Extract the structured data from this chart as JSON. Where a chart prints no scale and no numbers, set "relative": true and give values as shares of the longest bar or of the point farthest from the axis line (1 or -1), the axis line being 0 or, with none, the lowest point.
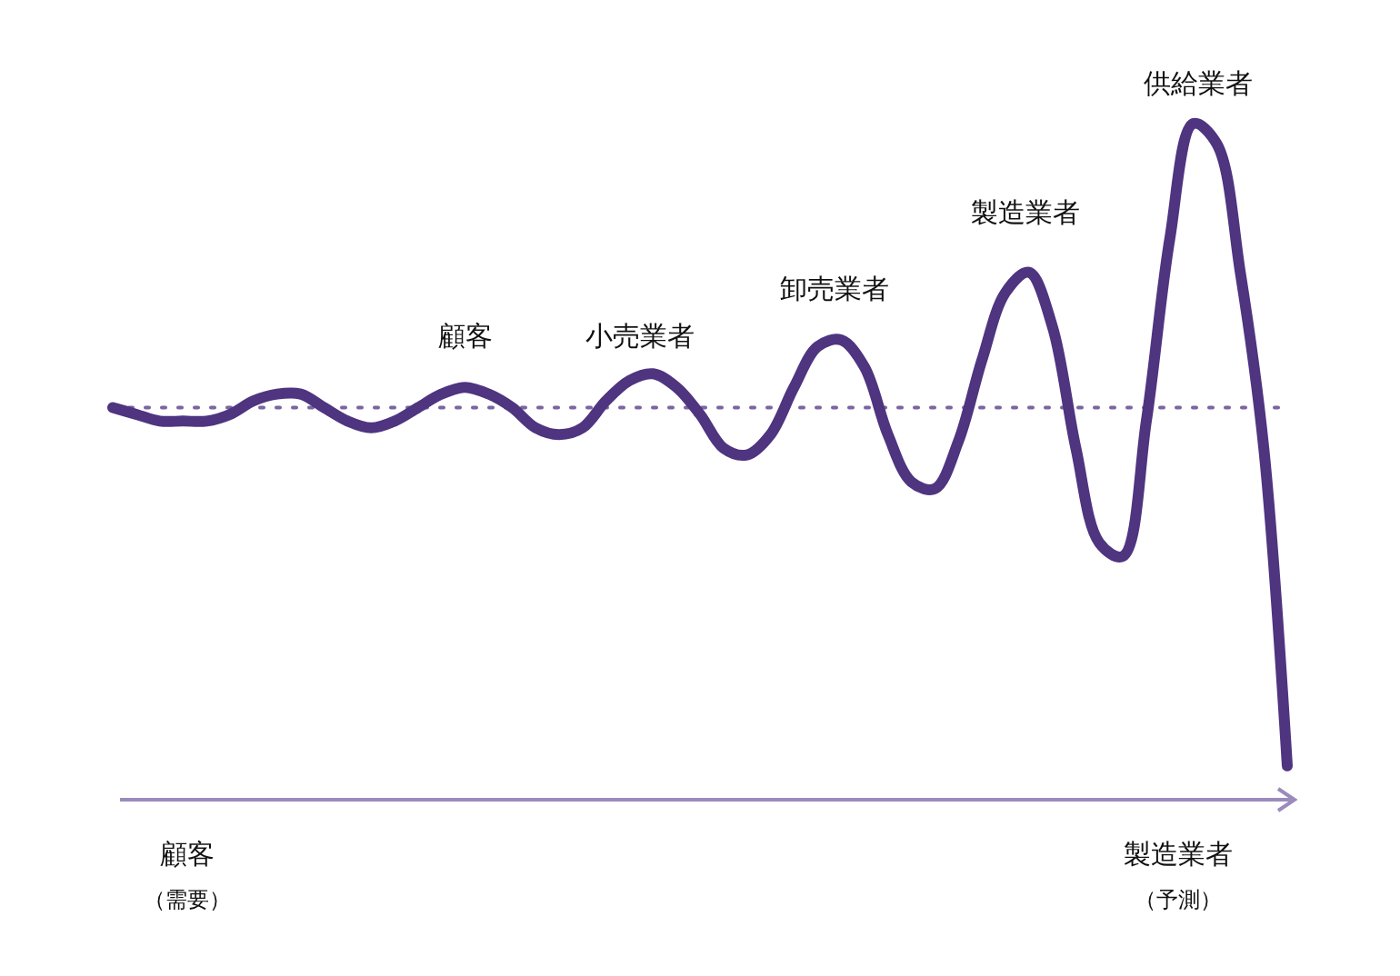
{
  "chart_data": {
    "type": "line",
    "relative": true,
    "categories": [
      null,
      null,
      null,
      null,
      null,
      null,
      null,
      null,
      null,
      null,
      null,
      null,
      null,
      null,
      null,
      null,
      null,
      null,
      null,
      null,
      null,
      null,
      null,
      null,
      null,
      null,
      null,
      null,
      null,
      null,
      null,
      null,
      null,
      null,
      null,
      null,
      null,
      null,
      null,
      null,
      null,
      null,
      null,
      null,
      null,
      null,
      null,
      null,
      null,
      null,
      null
    ],
    "series": [
      {
        "color": "#4f3480",
        "values": [
          0.58,
          0.57,
          0.56,
          0.56,
          0.56,
          0.57,
          0.59,
          0.6,
          0.6,
          0.58,
          0.56,
          0.55,
          0.56,
          0.58,
          0.6,
          0.61,
          0.6,
          0.58,
          0.55,
          0.54,
          0.55,
          0.59,
          0.62,
          0.63,
          0.61,
          0.57,
          0.52,
          0.51,
          0.54,
          0.61,
          0.67,
          0.68,
          0.64,
          0.54,
          0.47,
          0.46,
          0.53,
          0.65,
          0.75,
          0.78,
          0.7,
          0.52,
          0.38,
          0.36,
          0.56,
          0.83,
          1.0,
          0.97,
          0.78,
          0.52,
          0.05
        ]
      }
    ],
    "ref_lines": [
      {
        "axis": "y",
        "value": 0.58,
        "color": "#7a65a0",
        "line_style": "dotted"
      }
    ],
    "annotations": [
      "顧客",
      "小売業者",
      "卸売業者",
      "製造業者",
      "供給業者",
      "顧客",
      "（需要）",
      "製造業者",
      "（予測）"
    ],
    "marker": "none",
    "line_style": "solid"
  }
}
